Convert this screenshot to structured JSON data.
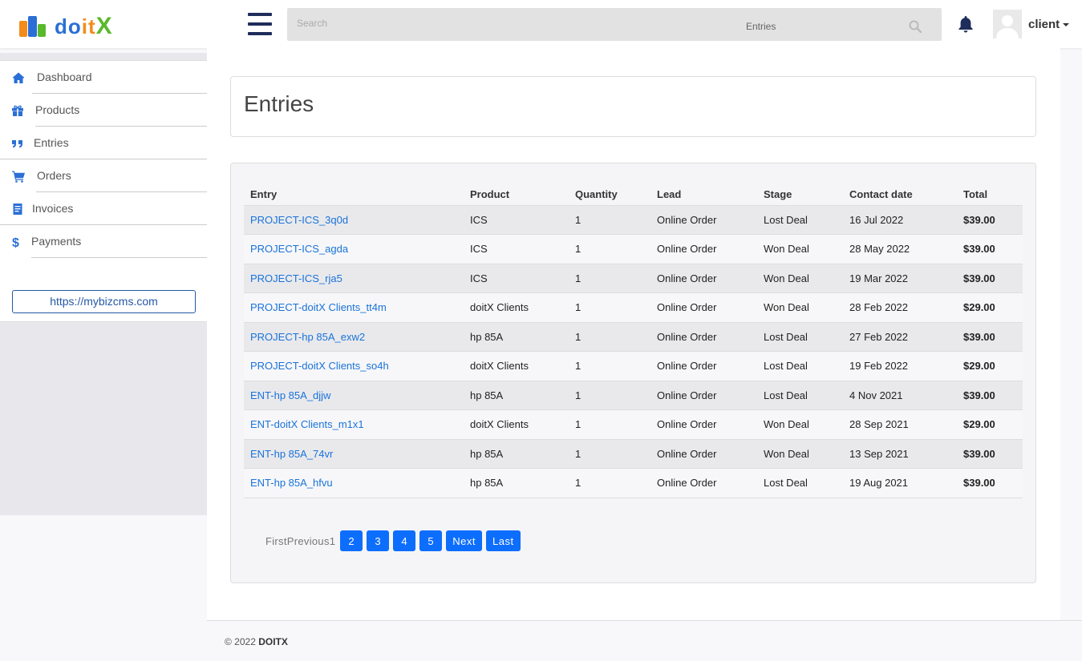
{
  "brand": {
    "logo_text": "doitX",
    "colors": {
      "blue": "#2b6fd6",
      "orange": "#f28c1c",
      "green": "#5ab82b",
      "navy": "#1e2d5a"
    }
  },
  "header": {
    "search_placeholder": "Search",
    "search_label": "Entries",
    "user_name": "client"
  },
  "sidebar": {
    "items": [
      {
        "label": "Dashboard",
        "icon": "home-icon"
      },
      {
        "label": "Products",
        "icon": "gift-icon"
      },
      {
        "label": "Entries",
        "icon": "quote-icon"
      },
      {
        "label": "Orders",
        "icon": "cart-icon"
      },
      {
        "label": "Invoices",
        "icon": "invoice-icon"
      },
      {
        "label": "Payments",
        "icon": "dollar-icon"
      }
    ],
    "site_link": "https://mybizcms.com"
  },
  "page": {
    "title": "Entries"
  },
  "table": {
    "headers": [
      "Entry",
      "Product",
      "Quantity",
      "Lead",
      "Stage",
      "Contact date",
      "Total"
    ],
    "rows": [
      {
        "entry": "PROJECT-ICS_3q0d",
        "product": "ICS",
        "quantity": "1",
        "lead": "Online Order",
        "stage": "Lost Deal",
        "date": "16 Jul 2022",
        "total": "$39.00"
      },
      {
        "entry": "PROJECT-ICS_agda",
        "product": "ICS",
        "quantity": "1",
        "lead": "Online Order",
        "stage": "Won Deal",
        "date": "28 May 2022",
        "total": "$39.00"
      },
      {
        "entry": "PROJECT-ICS_rja5",
        "product": "ICS",
        "quantity": "1",
        "lead": "Online Order",
        "stage": "Won Deal",
        "date": "19 Mar 2022",
        "total": "$39.00"
      },
      {
        "entry": "PROJECT-doitX Clients_tt4m",
        "product": "doitX Clients",
        "quantity": "1",
        "lead": "Online Order",
        "stage": "Won Deal",
        "date": "28 Feb 2022",
        "total": "$29.00"
      },
      {
        "entry": "PROJECT-hp 85A_exw2",
        "product": "hp 85A",
        "quantity": "1",
        "lead": "Online Order",
        "stage": "Lost Deal",
        "date": "27 Feb 2022",
        "total": "$39.00"
      },
      {
        "entry": "PROJECT-doitX Clients_so4h",
        "product": "doitX Clients",
        "quantity": "1",
        "lead": "Online Order",
        "stage": "Lost Deal",
        "date": "19 Feb 2022",
        "total": "$29.00"
      },
      {
        "entry": "ENT-hp 85A_djjw",
        "product": "hp 85A",
        "quantity": "1",
        "lead": "Online Order",
        "stage": "Lost Deal",
        "date": "4 Nov 2021",
        "total": "$39.00"
      },
      {
        "entry": "ENT-doitX Clients_m1x1",
        "product": "doitX Clients",
        "quantity": "1",
        "lead": "Online Order",
        "stage": "Won Deal",
        "date": "28 Sep 2021",
        "total": "$29.00"
      },
      {
        "entry": "ENT-hp 85A_74vr",
        "product": "hp 85A",
        "quantity": "1",
        "lead": "Online Order",
        "stage": "Won Deal",
        "date": "13 Sep 2021",
        "total": "$39.00"
      },
      {
        "entry": "ENT-hp 85A_hfvu",
        "product": "hp 85A",
        "quantity": "1",
        "lead": "Online Order",
        "stage": "Lost Deal",
        "date": "19 Aug 2021",
        "total": "$39.00"
      }
    ]
  },
  "pagination": {
    "text": "FirstPrevious1",
    "buttons": [
      "2",
      "3",
      "4",
      "5",
      "Next",
      "Last"
    ]
  },
  "footer": {
    "copyright": "© 2022",
    "brand": "DOITX"
  }
}
